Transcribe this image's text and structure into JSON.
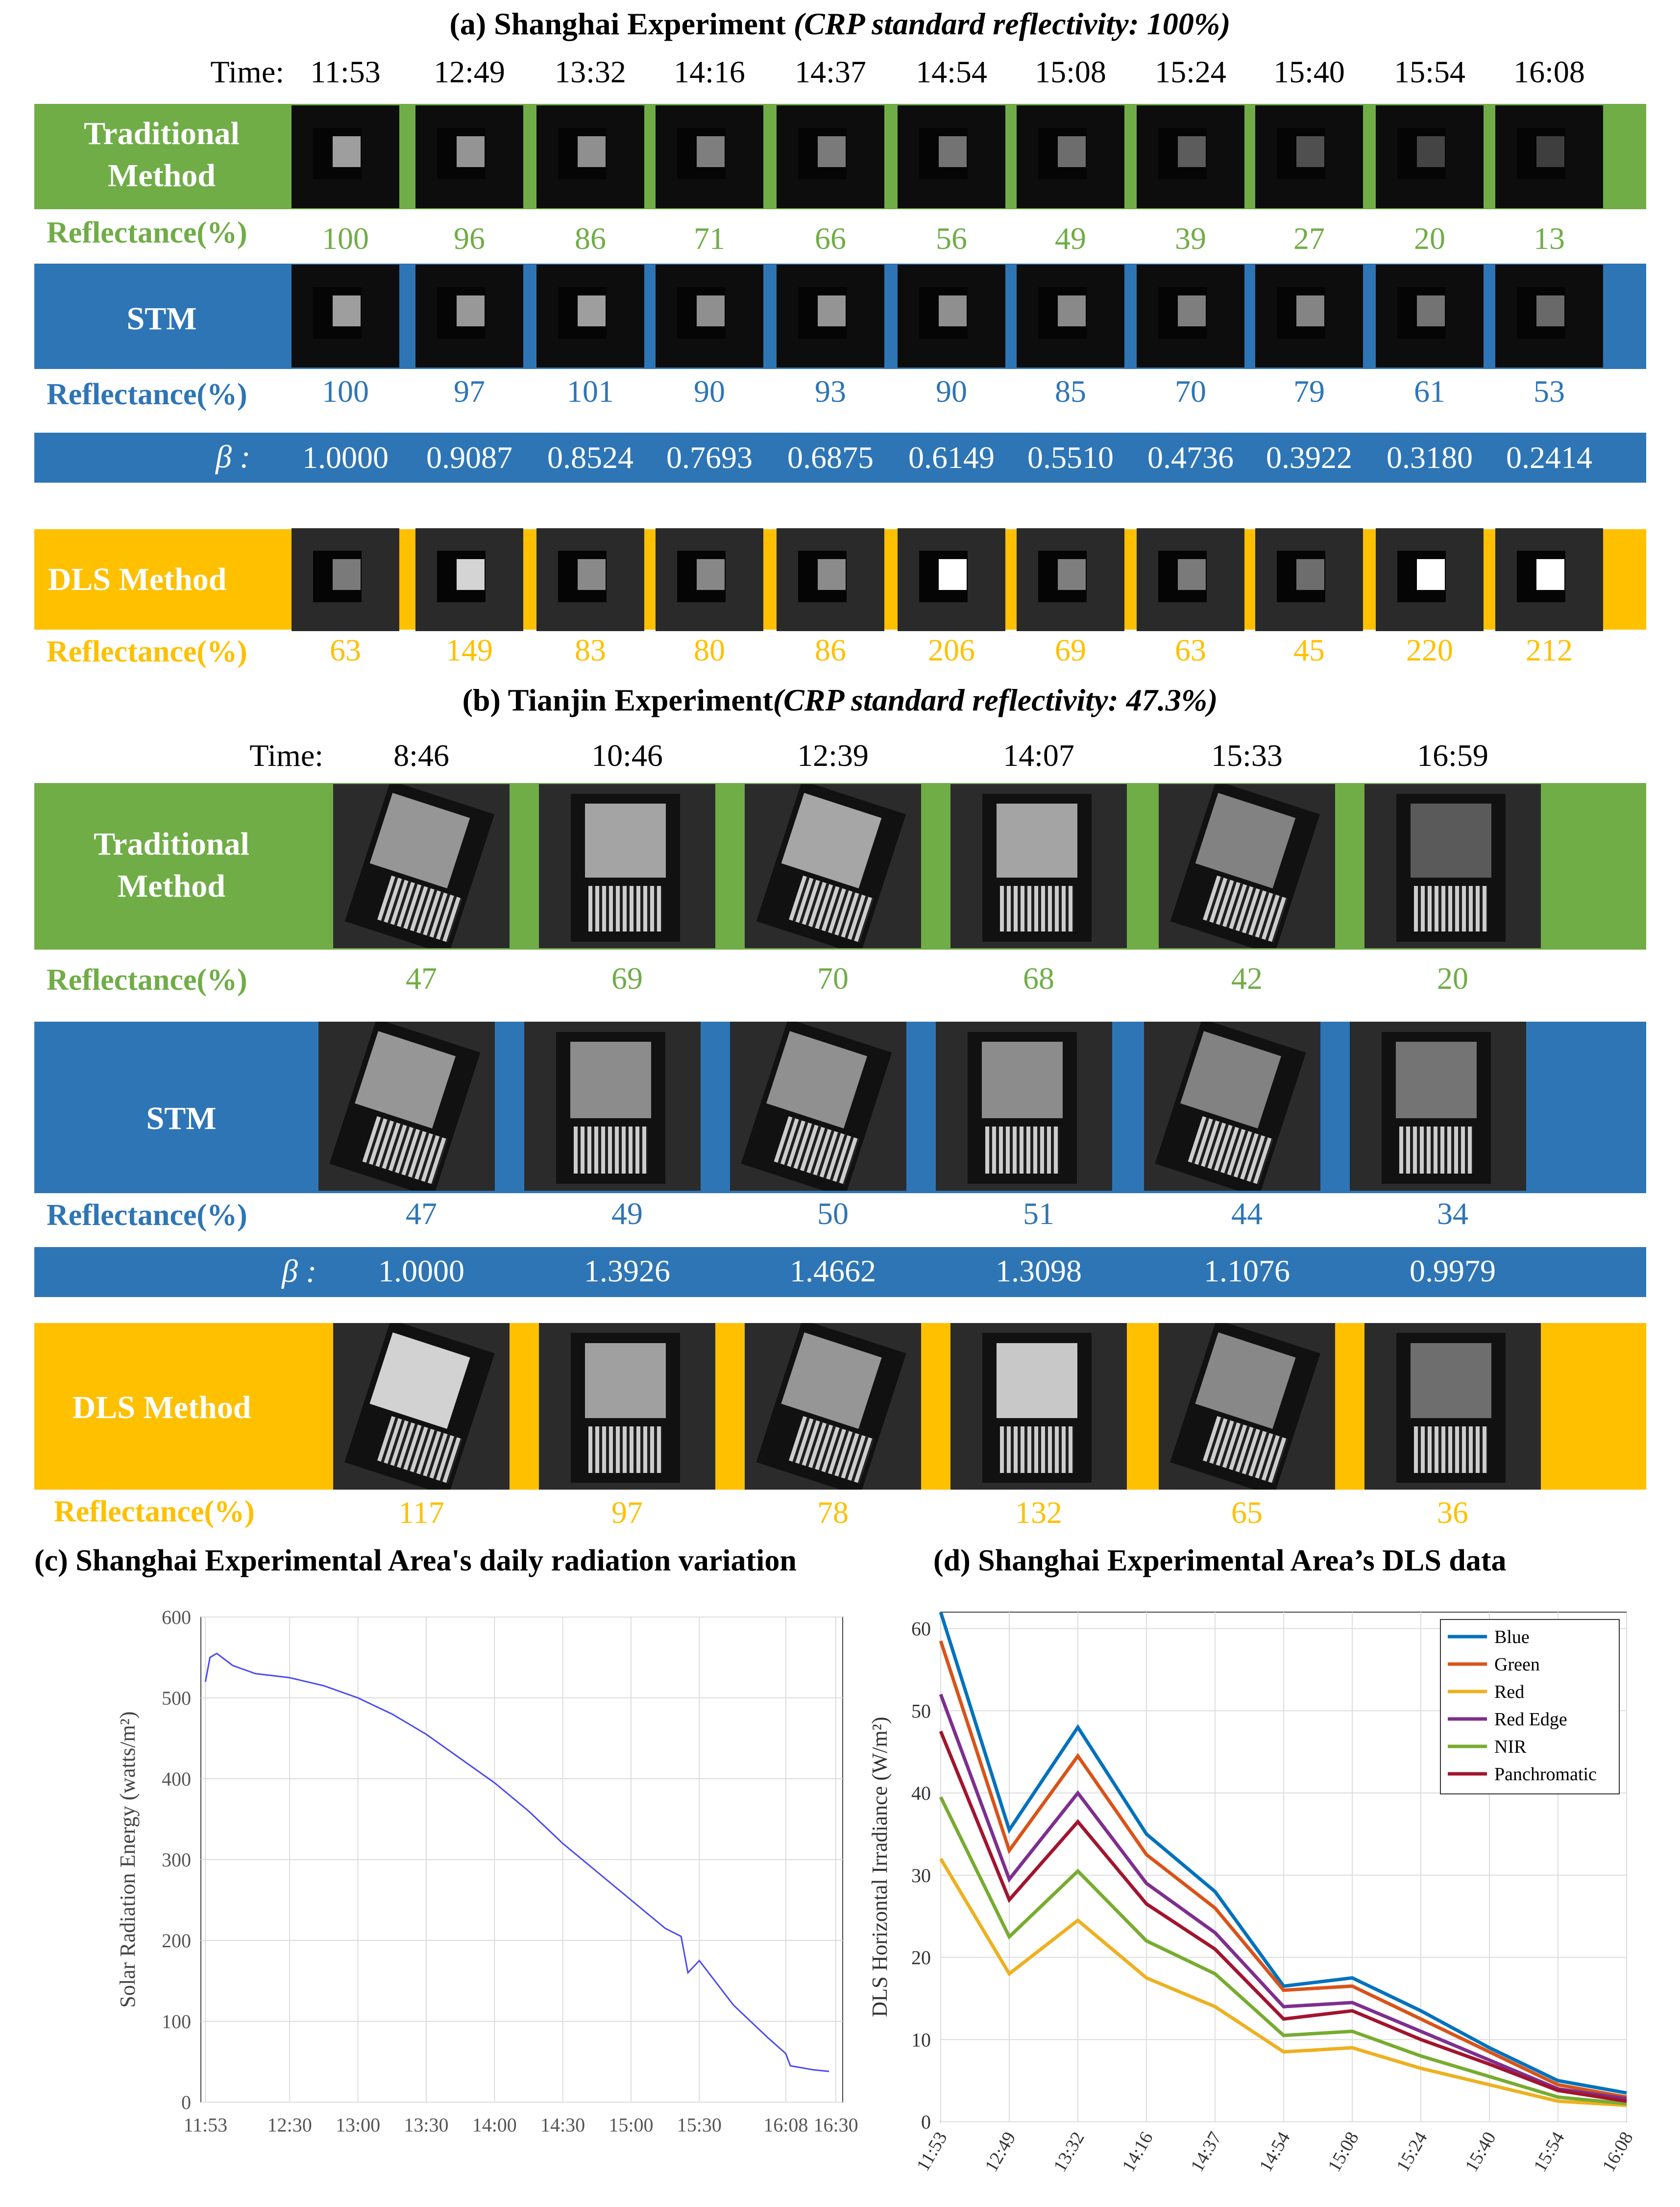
{
  "colors": {
    "green": "#70ad47",
    "blue": "#2e75b6",
    "yellow": "#ffc000"
  },
  "shanghai": {
    "title_main": "(a) Shanghai Experiment ",
    "title_italic": "(CRP standard reflectivity: 100%)",
    "time_label": "Time:",
    "times": [
      "11:53",
      "12:49",
      "13:32",
      "14:16",
      "14:37",
      "14:54",
      "15:08",
      "15:24",
      "15:40",
      "15:54",
      "16:08"
    ],
    "traditional": {
      "label_line1": "Traditional",
      "label_line2": "Method",
      "reflectance_label": "Reflectance(%)",
      "values": [
        "100",
        "96",
        "86",
        "71",
        "66",
        "56",
        "49",
        "39",
        "27",
        "20",
        "13"
      ],
      "patch_levels": [
        0.55,
        0.5,
        0.48,
        0.4,
        0.38,
        0.35,
        0.32,
        0.24,
        0.18,
        0.13,
        0.1
      ]
    },
    "stm": {
      "label": "STM",
      "reflectance_label": "Reflectance(%)",
      "values": [
        "100",
        "97",
        "101",
        "90",
        "93",
        "90",
        "85",
        "70",
        "79",
        "61",
        "53"
      ],
      "patch_levels": [
        0.55,
        0.52,
        0.55,
        0.48,
        0.5,
        0.48,
        0.45,
        0.4,
        0.43,
        0.35,
        0.3
      ]
    },
    "beta": {
      "label": "β :",
      "values": [
        "1.0000",
        "0.9087",
        "0.8524",
        "0.7693",
        "0.6875",
        "0.6149",
        "0.5510",
        "0.4736",
        "0.3922",
        "0.3180",
        "0.2414"
      ]
    },
    "dls": {
      "label": "DLS Method",
      "reflectance_label": "Reflectance(%)",
      "values": [
        "63",
        "149",
        "83",
        "80",
        "86",
        "206",
        "69",
        "63",
        "45",
        "220",
        "212"
      ],
      "patch_levels": [
        0.38,
        0.8,
        0.45,
        0.44,
        0.46,
        1.0,
        0.4,
        0.38,
        0.32,
        1.0,
        1.0
      ]
    }
  },
  "tianjin": {
    "title_main": "(b) Tianjin Experiment",
    "title_italic": "(CRP standard reflectivity: 47.3%)",
    "time_label": "Time:",
    "times": [
      "8:46",
      "10:46",
      "12:39",
      "14:07",
      "15:33",
      "16:59"
    ],
    "traditional": {
      "label_line1": "Traditional",
      "label_line2": "Method",
      "reflectance_label": "Reflectance(%)",
      "values": [
        "47",
        "69",
        "70",
        "68",
        "42",
        "20"
      ],
      "patch_levels": [
        0.55,
        0.62,
        0.63,
        0.62,
        0.45,
        0.25
      ]
    },
    "stm": {
      "label": "STM",
      "reflectance_label": "Reflectance(%)",
      "values": [
        "47",
        "49",
        "50",
        "51",
        "44",
        "34"
      ],
      "patch_levels": [
        0.55,
        0.5,
        0.52,
        0.5,
        0.45,
        0.38
      ]
    },
    "beta": {
      "label": "β :",
      "values": [
        "1.0000",
        "1.3926",
        "1.4662",
        "1.3098",
        "1.1076",
        "0.9979"
      ]
    },
    "dls": {
      "label": "DLS Method",
      "reflectance_label": "Reflectance(%)",
      "values": [
        "117",
        "97",
        "78",
        "132",
        "65",
        "36"
      ],
      "patch_levels": [
        0.85,
        0.6,
        0.55,
        0.8,
        0.48,
        0.35
      ]
    }
  },
  "chart_c": {
    "title": "(c) Shanghai Experimental Area's daily radiation variation",
    "ylabel": "Solar Radiation Energy (watts/m²)"
  },
  "chart_d": {
    "title": "(d) Shanghai Experimental Area’s DLS data",
    "ylabel": "DLS Horizontal Irradiance (W/m²)"
  },
  "chart_data": [
    {
      "type": "line",
      "title": "(c) Shanghai Experimental Area's daily radiation variation",
      "ylabel": "Solar Radiation Energy (watts/m²)",
      "xlabel": "",
      "x_ticks": [
        "11:53",
        "12:30",
        "13:00",
        "13:30",
        "14:00",
        "14:30",
        "15:00",
        "15:30",
        "16:08",
        "16:30"
      ],
      "ylim": [
        0,
        600
      ],
      "y_ticks": [
        0,
        100,
        200,
        300,
        400,
        500,
        600
      ],
      "grid": true,
      "series": [
        {
          "color": "#4b4bf0",
          "x": [
            "11:53",
            "11:55",
            "11:58",
            "12:05",
            "12:15",
            "12:30",
            "12:45",
            "13:00",
            "13:15",
            "13:30",
            "13:45",
            "14:00",
            "14:15",
            "14:30",
            "14:45",
            "15:00",
            "15:15",
            "15:22",
            "15:25",
            "15:30",
            "15:45",
            "16:00",
            "16:08",
            "16:10",
            "16:20",
            "16:27"
          ],
          "values": [
            520,
            550,
            555,
            540,
            530,
            525,
            515,
            500,
            480,
            455,
            425,
            395,
            360,
            320,
            285,
            250,
            215,
            205,
            160,
            175,
            120,
            80,
            60,
            45,
            40,
            38
          ]
        }
      ]
    },
    {
      "type": "line",
      "title": "(d) Shanghai Experimental Area’s DLS data",
      "ylabel": "DLS Horizontal Irradiance (W/m²)",
      "xlabel": "",
      "categories": [
        "11:53",
        "12:49",
        "13:32",
        "14:16",
        "14:37",
        "14:54",
        "15:08",
        "15:24",
        "15:40",
        "15:54",
        "16:08"
      ],
      "ylim": [
        0,
        62
      ],
      "y_ticks": [
        0,
        10,
        20,
        30,
        40,
        50,
        60
      ],
      "grid": true,
      "legend": "top-right",
      "series": [
        {
          "name": "Blue",
          "color": "#0072bd",
          "values": [
            62,
            35.5,
            48,
            35,
            28,
            16.5,
            17.5,
            13.5,
            9,
            5,
            3.5
          ]
        },
        {
          "name": "Green",
          "color": "#d95319",
          "values": [
            58.5,
            33,
            44.5,
            32.5,
            26,
            16,
            16.5,
            12.5,
            8.5,
            4.5,
            3
          ]
        },
        {
          "name": "Red",
          "color": "#edb120",
          "values": [
            32,
            18,
            24.5,
            17.5,
            14,
            8.5,
            9,
            6.5,
            4.5,
            2.5,
            2
          ]
        },
        {
          "name": "Red Edge",
          "color": "#7e2f8e",
          "values": [
            52,
            29.5,
            40,
            29,
            23,
            14,
            14.5,
            11,
            7.5,
            4,
            2.8
          ]
        },
        {
          "name": "NIR",
          "color": "#77ac30",
          "values": [
            39.5,
            22.5,
            30.5,
            22,
            18,
            10.5,
            11,
            8,
            5.5,
            3,
            2.2
          ]
        },
        {
          "name": "Panchromatic",
          "color": "#a2142f",
          "values": [
            47.5,
            27,
            36.5,
            26.5,
            21,
            12.5,
            13.5,
            10,
            7,
            3.8,
            2.5
          ]
        }
      ]
    }
  ]
}
